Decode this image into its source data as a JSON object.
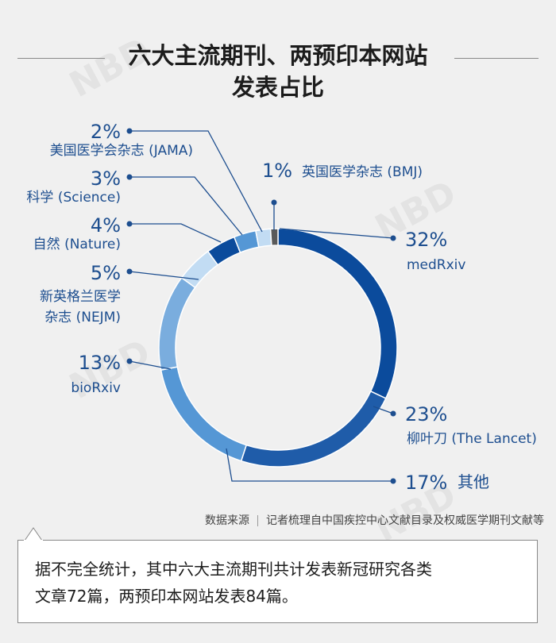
{
  "title_line1": "六大主流期刊、两预印本网站",
  "title_line2": "发表占比",
  "chart_data": {
    "type": "pie",
    "donut": true,
    "slices": [
      {
        "pct_label": "32%",
        "name": "medRxiv",
        "value": 32,
        "color": "#0b4b9c"
      },
      {
        "pct_label": "23%",
        "name": "柳叶刀 (The Lancet)",
        "value": 23,
        "color": "#1f5ca9"
      },
      {
        "pct_label": "17%",
        "name": "其他",
        "value": 17,
        "color": "#5597d5"
      },
      {
        "pct_label": "13%",
        "name": "bioRxiv",
        "value": 13,
        "color": "#7aadde"
      },
      {
        "pct_label": "5%",
        "name": "新英格兰医学杂志 (NEJM)",
        "value": 5,
        "color": "#c2dcf3"
      },
      {
        "pct_label": "4%",
        "name": "自然 (Nature)",
        "value": 4,
        "color": "#0b4b9c"
      },
      {
        "pct_label": "3%",
        "name": "科学 (Science)",
        "value": 3,
        "color": "#5597d5"
      },
      {
        "pct_label": "2%",
        "name": "美国医学会杂志 (JAMA)",
        "value": 2,
        "color": "#c2dcf3"
      },
      {
        "pct_label": "1%",
        "name": "英国医学杂志 (BMJ)",
        "value": 1,
        "color": "#5a5a5a"
      }
    ]
  },
  "labels": {
    "medrxiv_pct": "32%",
    "medrxiv_name": "medRxiv",
    "lancet_pct": "23%",
    "lancet_name": "柳叶刀 (The Lancet)",
    "other_pct": "17%",
    "other_name": "其他",
    "biorxiv_pct": "13%",
    "biorxiv_name": "bioRxiv",
    "nejm_pct": "5%",
    "nejm_name1": "新英格兰医学",
    "nejm_name2": "杂志 (NEJM)",
    "nature_pct": "4%",
    "nature_name": "自然 (Nature)",
    "science_pct": "3%",
    "science_name": "科学 (Science)",
    "jama_pct": "2%",
    "jama_name": "美国医学会杂志 (JAMA)",
    "bmj_pct": "1%",
    "bmj_name": "英国医学杂志 (BMJ)"
  },
  "source_label": "数据来源",
  "source_text": "记者梳理自中国疾控中心文献目录及权威医学期刊文献等",
  "note_line1": "据不完全统计，其中六大主流期刊共计发表新冠研究各类",
  "note_line2": "文章72篇，两预印本网站发表84篇。",
  "watermark": "NBD"
}
